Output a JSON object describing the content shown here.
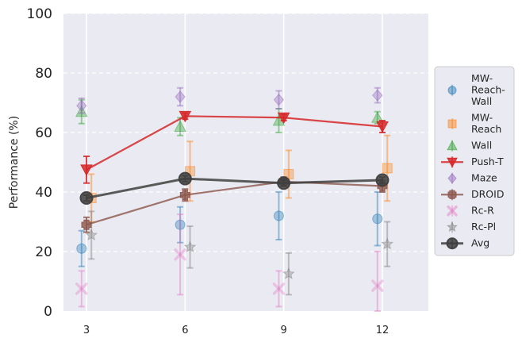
{
  "chart_data": {
    "type": "line",
    "title": "",
    "xlabel": "",
    "ylabel": "Performance (%)",
    "x": [
      3,
      6,
      9,
      12
    ],
    "xticks": [
      "3",
      "6",
      "9",
      "12"
    ],
    "xlim": [
      2.3,
      13.4
    ],
    "ylim": [
      0,
      100
    ],
    "yticks": [
      "0",
      "20",
      "40",
      "60",
      "80",
      "100"
    ],
    "grid": true,
    "legend_position": "right",
    "series": [
      {
        "name": "MW-Reach-Wall",
        "legend_lines": [
          "MW-",
          "Reach-",
          "Wall"
        ],
        "marker": "circle",
        "color": "#1f77b4",
        "alpha": 0.35,
        "offset": -0.15,
        "line": false,
        "values": [
          21,
          29,
          32,
          31
        ],
        "err": [
          6,
          6,
          8,
          9
        ]
      },
      {
        "name": "MW-Reach",
        "legend_lines": [
          "MW-",
          "Reach"
        ],
        "marker": "square",
        "color": "#ff7f0e",
        "alpha": 0.35,
        "offset": 0.15,
        "line": false,
        "values": [
          38,
          47,
          46,
          48
        ],
        "err": [
          8,
          10,
          8,
          11
        ]
      },
      {
        "name": "Wall",
        "legend_lines": [
          "Wall"
        ],
        "marker": "triangle-up",
        "color": "#2ca02c",
        "alpha": 0.35,
        "offset": -0.15,
        "line": false,
        "values": [
          67,
          62,
          64,
          65
        ],
        "err": [
          4,
          3,
          4,
          2
        ]
      },
      {
        "name": "Push-T",
        "legend_lines": [
          "Push-T"
        ],
        "marker": "triangle-down",
        "color": "#d62728",
        "alpha": 0.85,
        "offset": 0,
        "line": true,
        "values": [
          47.5,
          65.5,
          65,
          62
        ],
        "err": [
          4.5,
          1,
          1,
          2
        ]
      },
      {
        "name": "Maze",
        "legend_lines": [
          "Maze"
        ],
        "marker": "diamond",
        "color": "#9467bd",
        "alpha": 0.35,
        "offset": -0.15,
        "line": false,
        "values": [
          69,
          72,
          71,
          72.5
        ],
        "err": [
          2.5,
          3,
          3,
          2.5
        ]
      },
      {
        "name": "DROID",
        "legend_lines": [
          "DROID"
        ],
        "marker": "plus",
        "color": "#8c564b",
        "alpha": 0.8,
        "offset": 0,
        "line": true,
        "values": [
          29,
          39,
          43.5,
          42
        ],
        "err": [
          2.5,
          2,
          1.5,
          2
        ]
      },
      {
        "name": "Rc-R",
        "legend_lines": [
          "Rc-R"
        ],
        "marker": "x",
        "color": "#e377c2",
        "alpha": 0.35,
        "offset": -0.15,
        "line": false,
        "values": [
          7.5,
          19,
          7.5,
          8.5
        ],
        "err": [
          6,
          13.5,
          6,
          11.5
        ]
      },
      {
        "name": "Rc-Pl",
        "legend_lines": [
          "Rc-Pl"
        ],
        "marker": "star",
        "color": "#7f7f7f",
        "alpha": 0.35,
        "offset": 0.15,
        "line": false,
        "values": [
          25.5,
          21.5,
          12.5,
          22.5
        ],
        "err": [
          8,
          7,
          7,
          7.5
        ]
      },
      {
        "name": "Avg",
        "legend_lines": [
          "Avg"
        ],
        "marker": "circle-big",
        "color": "#404040",
        "alpha": 0.85,
        "offset": 0,
        "line": true,
        "values": [
          38,
          44.5,
          43,
          44
        ],
        "err": [
          1,
          1,
          1,
          1
        ]
      }
    ]
  }
}
